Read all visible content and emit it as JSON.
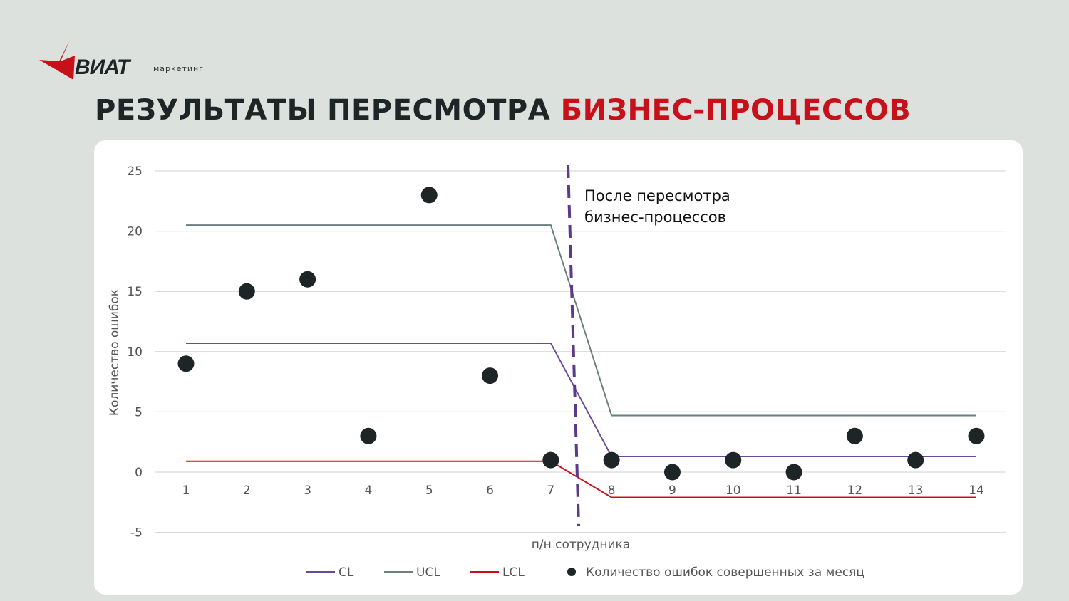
{
  "logo": {
    "word": "ВИАТ",
    "sub": "маркетинг",
    "color": "#c8101a"
  },
  "title": {
    "main": "РЕЗУЛЬТАТЫ ПЕРЕСМОТРА ",
    "accent": "БИЗНЕС-ПРОЦЕССОВ"
  },
  "chart_data": {
    "type": "line",
    "xlabel": "п/н сотрудника",
    "ylabel": "Количество ошибок",
    "ylim": [
      -5,
      25
    ],
    "yticks": [
      "25",
      "20",
      "15",
      "10",
      "5",
      "0",
      "-5"
    ],
    "x": [
      1,
      2,
      3,
      4,
      5,
      6,
      7,
      8,
      9,
      10,
      11,
      12,
      13,
      14
    ],
    "xticks": [
      "1",
      "2",
      "3",
      "4",
      "5",
      "6",
      "7",
      "8",
      "9",
      "10",
      "11",
      "12",
      "13",
      "14"
    ],
    "grid": true,
    "legend_position": "bottom",
    "series": [
      {
        "name": "CL",
        "type": "line",
        "color": "#6a4a9c",
        "values": [
          10.7,
          10.7,
          10.7,
          10.7,
          10.7,
          10.7,
          10.7,
          1.3,
          1.3,
          1.3,
          1.3,
          1.3,
          1.3,
          1.3
        ]
      },
      {
        "name": "UCL",
        "type": "line",
        "color": "#6b7f7f",
        "values": [
          20.5,
          20.5,
          20.5,
          20.5,
          20.5,
          20.5,
          20.5,
          4.7,
          4.7,
          4.7,
          4.7,
          4.7,
          4.7,
          4.7
        ]
      },
      {
        "name": "LCL",
        "type": "line",
        "color": "#c8101a",
        "values": [
          0.9,
          0.9,
          0.9,
          0.9,
          0.9,
          0.9,
          0.9,
          -2.1,
          -2.1,
          -2.1,
          -2.1,
          -2.1,
          -2.1,
          -2.1
        ]
      },
      {
        "name": "Количество ошибок совершенных за месяц",
        "type": "scatter",
        "color": "#1e2526",
        "values": [
          9,
          15,
          16,
          3,
          23,
          8,
          1,
          1,
          0,
          1,
          0,
          3,
          1,
          3
        ]
      }
    ],
    "annotation": {
      "lines": [
        "После пересмотра",
        "бизнес-процессов"
      ],
      "divider_color": "#5b3a8c"
    }
  }
}
